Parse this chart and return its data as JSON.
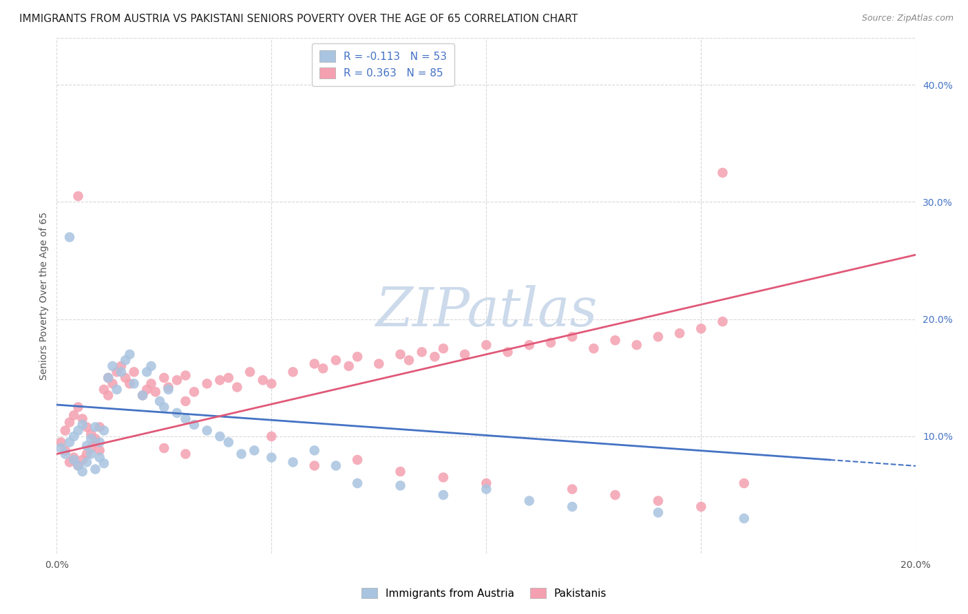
{
  "title": "IMMIGRANTS FROM AUSTRIA VS PAKISTANI SENIORS POVERTY OVER THE AGE OF 65 CORRELATION CHART",
  "source": "Source: ZipAtlas.com",
  "xlabel": "",
  "ylabel": "Seniors Poverty Over the Age of 65",
  "xlim": [
    0.0,
    0.2
  ],
  "ylim": [
    0.0,
    0.44
  ],
  "xticks": [
    0.0,
    0.05,
    0.1,
    0.15,
    0.2
  ],
  "xticklabels": [
    "0.0%",
    "",
    "",
    "",
    "20.0%"
  ],
  "yticks_right": [
    0.1,
    0.2,
    0.3,
    0.4
  ],
  "yticklabels_right": [
    "10.0%",
    "20.0%",
    "30.0%",
    "40.0%"
  ],
  "austria_color": "#a8c4e0",
  "pakistan_color": "#f4a0b0",
  "austria_line_color": "#4472c4",
  "pakistan_line_color": "#e05878",
  "austria_R": -0.113,
  "austria_N": 53,
  "pakistan_R": 0.363,
  "pakistan_N": 85,
  "legend_color": "#4472c4",
  "watermark": "ZIPatlas",
  "watermark_color": "#ccdaeb",
  "grid_color": "#d8d8d8",
  "background_color": "#ffffff",
  "title_fontsize": 11,
  "axis_label_fontsize": 10,
  "tick_fontsize": 10,
  "legend_fontsize": 11,
  "austria_x": [
    0.001,
    0.002,
    0.003,
    0.004,
    0.004,
    0.005,
    0.005,
    0.006,
    0.006,
    0.007,
    0.007,
    0.008,
    0.008,
    0.009,
    0.009,
    0.01,
    0.01,
    0.011,
    0.011,
    0.012,
    0.013,
    0.014,
    0.015,
    0.016,
    0.017,
    0.018,
    0.02,
    0.021,
    0.022,
    0.024,
    0.025,
    0.026,
    0.028,
    0.03,
    0.032,
    0.035,
    0.038,
    0.04,
    0.043,
    0.046,
    0.05,
    0.055,
    0.06,
    0.065,
    0.07,
    0.08,
    0.09,
    0.1,
    0.11,
    0.12,
    0.14,
    0.16,
    0.003
  ],
  "austria_y": [
    0.09,
    0.085,
    0.095,
    0.08,
    0.1,
    0.075,
    0.105,
    0.07,
    0.11,
    0.078,
    0.092,
    0.085,
    0.098,
    0.072,
    0.108,
    0.082,
    0.095,
    0.077,
    0.105,
    0.15,
    0.16,
    0.14,
    0.155,
    0.165,
    0.17,
    0.145,
    0.135,
    0.155,
    0.16,
    0.13,
    0.125,
    0.14,
    0.12,
    0.115,
    0.11,
    0.105,
    0.1,
    0.095,
    0.085,
    0.088,
    0.082,
    0.078,
    0.088,
    0.075,
    0.06,
    0.058,
    0.05,
    0.055,
    0.045,
    0.04,
    0.035,
    0.03,
    0.27
  ],
  "pakistan_x": [
    0.001,
    0.002,
    0.002,
    0.003,
    0.003,
    0.004,
    0.004,
    0.005,
    0.005,
    0.006,
    0.006,
    0.007,
    0.007,
    0.008,
    0.008,
    0.009,
    0.009,
    0.01,
    0.01,
    0.011,
    0.012,
    0.012,
    0.013,
    0.014,
    0.015,
    0.016,
    0.017,
    0.018,
    0.02,
    0.021,
    0.022,
    0.023,
    0.025,
    0.026,
    0.028,
    0.03,
    0.03,
    0.032,
    0.035,
    0.038,
    0.04,
    0.042,
    0.045,
    0.048,
    0.05,
    0.055,
    0.06,
    0.062,
    0.065,
    0.068,
    0.07,
    0.075,
    0.08,
    0.082,
    0.085,
    0.088,
    0.09,
    0.095,
    0.1,
    0.105,
    0.11,
    0.115,
    0.12,
    0.125,
    0.13,
    0.135,
    0.14,
    0.145,
    0.15,
    0.155,
    0.005,
    0.025,
    0.03,
    0.05,
    0.06,
    0.07,
    0.08,
    0.09,
    0.1,
    0.12,
    0.13,
    0.14,
    0.15,
    0.155,
    0.16
  ],
  "pakistan_y": [
    0.095,
    0.088,
    0.105,
    0.078,
    0.112,
    0.082,
    0.118,
    0.075,
    0.125,
    0.08,
    0.115,
    0.085,
    0.108,
    0.09,
    0.102,
    0.095,
    0.098,
    0.088,
    0.108,
    0.14,
    0.15,
    0.135,
    0.145,
    0.155,
    0.16,
    0.15,
    0.145,
    0.155,
    0.135,
    0.14,
    0.145,
    0.138,
    0.15,
    0.142,
    0.148,
    0.13,
    0.152,
    0.138,
    0.145,
    0.148,
    0.15,
    0.142,
    0.155,
    0.148,
    0.145,
    0.155,
    0.162,
    0.158,
    0.165,
    0.16,
    0.168,
    0.162,
    0.17,
    0.165,
    0.172,
    0.168,
    0.175,
    0.17,
    0.178,
    0.172,
    0.178,
    0.18,
    0.185,
    0.175,
    0.182,
    0.178,
    0.185,
    0.188,
    0.192,
    0.198,
    0.305,
    0.09,
    0.085,
    0.1,
    0.075,
    0.08,
    0.07,
    0.065,
    0.06,
    0.055,
    0.05,
    0.045,
    0.04,
    0.325,
    0.06
  ]
}
